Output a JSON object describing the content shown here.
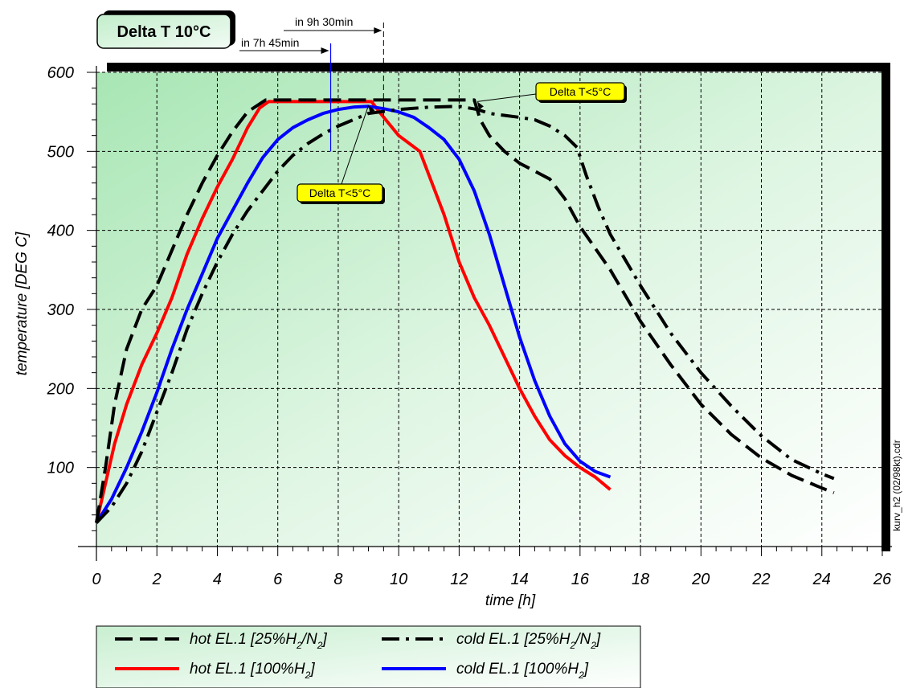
{
  "chart_data": {
    "type": "line",
    "title": "Delta T 10°C",
    "xlabel": "time [h]",
    "ylabel": "temperature [DEG C]",
    "xlim": [
      0,
      26
    ],
    "ylim": [
      0,
      600
    ],
    "x_ticks": [
      0,
      2,
      4,
      6,
      8,
      10,
      12,
      14,
      16,
      18,
      20,
      22,
      24,
      26
    ],
    "y_ticks": [
      100,
      200,
      300,
      400,
      500,
      600
    ],
    "grid": true,
    "legend_position": "bottom",
    "series": [
      {
        "name_parts": [
          "hot EL.1 [25%H",
          "2",
          "/N",
          "2",
          "]"
        ],
        "color": "#000000",
        "style": "dashed",
        "points": [
          [
            0,
            30
          ],
          [
            0.3,
            100
          ],
          [
            0.6,
            180
          ],
          [
            1,
            250
          ],
          [
            1.5,
            300
          ],
          [
            2,
            330
          ],
          [
            2.5,
            375
          ],
          [
            3,
            420
          ],
          [
            3.5,
            460
          ],
          [
            4,
            495
          ],
          [
            4.5,
            525
          ],
          [
            5,
            550
          ],
          [
            5.6,
            565
          ],
          [
            12.5,
            565
          ],
          [
            12.7,
            540
          ],
          [
            13,
            520
          ],
          [
            13.5,
            500
          ],
          [
            14,
            485
          ],
          [
            14.5,
            475
          ],
          [
            15,
            465
          ],
          [
            15.5,
            440
          ],
          [
            16,
            405
          ],
          [
            17,
            350
          ],
          [
            18,
            285
          ],
          [
            19,
            230
          ],
          [
            20,
            180
          ],
          [
            21,
            142
          ],
          [
            22,
            112
          ],
          [
            23,
            90
          ],
          [
            24,
            74
          ],
          [
            24.4,
            68
          ]
        ]
      },
      {
        "name_parts": [
          "cold EL.1 [25%H",
          "2",
          "/N",
          "2",
          "]"
        ],
        "color": "#000000",
        "style": "dashdot",
        "points": [
          [
            0,
            30
          ],
          [
            0.5,
            50
          ],
          [
            1,
            80
          ],
          [
            1.5,
            120
          ],
          [
            2,
            170
          ],
          [
            2.5,
            220
          ],
          [
            3,
            275
          ],
          [
            3.5,
            320
          ],
          [
            4,
            360
          ],
          [
            4.5,
            395
          ],
          [
            5,
            425
          ],
          [
            5.5,
            450
          ],
          [
            6,
            475
          ],
          [
            6.5,
            495
          ],
          [
            7,
            510
          ],
          [
            7.5,
            522
          ],
          [
            8,
            532
          ],
          [
            8.5,
            540
          ],
          [
            9,
            548
          ],
          [
            10,
            553
          ],
          [
            11,
            556
          ],
          [
            12,
            557
          ],
          [
            12.6,
            553
          ],
          [
            13,
            548
          ],
          [
            14,
            543
          ],
          [
            14.5,
            540
          ],
          [
            15,
            532
          ],
          [
            15.5,
            520
          ],
          [
            15.9,
            505
          ],
          [
            16.2,
            470
          ],
          [
            16.6,
            430
          ],
          [
            17,
            395
          ],
          [
            18,
            330
          ],
          [
            19,
            270
          ],
          [
            20,
            220
          ],
          [
            21,
            178
          ],
          [
            22,
            140
          ],
          [
            23,
            110
          ],
          [
            24,
            92
          ],
          [
            24.4,
            86
          ]
        ]
      },
      {
        "name_parts": [
          "hot EL.1 [100%H",
          "2",
          "]"
        ],
        "color": "#ff0000",
        "style": "solid",
        "points": [
          [
            0,
            30
          ],
          [
            0.3,
            80
          ],
          [
            0.6,
            130
          ],
          [
            1,
            180
          ],
          [
            1.5,
            230
          ],
          [
            2,
            270
          ],
          [
            2.5,
            315
          ],
          [
            3,
            370
          ],
          [
            3.5,
            415
          ],
          [
            4,
            455
          ],
          [
            4.5,
            490
          ],
          [
            5,
            530
          ],
          [
            5.4,
            555
          ],
          [
            5.7,
            563
          ],
          [
            9.1,
            563
          ],
          [
            9.4,
            548
          ],
          [
            10,
            520
          ],
          [
            10.7,
            500
          ],
          [
            11,
            470
          ],
          [
            11.5,
            420
          ],
          [
            12,
            360
          ],
          [
            12.5,
            315
          ],
          [
            13,
            280
          ],
          [
            13.5,
            240
          ],
          [
            14,
            200
          ],
          [
            14.5,
            165
          ],
          [
            15,
            135
          ],
          [
            15.5,
            115
          ],
          [
            16,
            100
          ],
          [
            16.5,
            88
          ],
          [
            17,
            72
          ]
        ]
      },
      {
        "name_parts": [
          "cold EL.1 [100%H",
          "2",
          "]"
        ],
        "color": "#0000ff",
        "style": "solid",
        "points": [
          [
            0,
            30
          ],
          [
            0.5,
            60
          ],
          [
            1,
            100
          ],
          [
            1.5,
            145
          ],
          [
            2,
            195
          ],
          [
            2.5,
            250
          ],
          [
            3,
            300
          ],
          [
            3.5,
            345
          ],
          [
            4,
            390
          ],
          [
            4.5,
            425
          ],
          [
            5,
            460
          ],
          [
            5.5,
            492
          ],
          [
            6,
            515
          ],
          [
            6.5,
            530
          ],
          [
            7,
            540
          ],
          [
            7.5,
            548
          ],
          [
            8,
            553
          ],
          [
            8.5,
            556
          ],
          [
            9,
            557
          ],
          [
            9.5,
            554
          ],
          [
            10,
            550
          ],
          [
            10.5,
            543
          ],
          [
            11,
            530
          ],
          [
            11.5,
            515
          ],
          [
            12,
            490
          ],
          [
            12.5,
            450
          ],
          [
            13,
            395
          ],
          [
            13.5,
            330
          ],
          [
            14,
            265
          ],
          [
            14.5,
            210
          ],
          [
            15,
            165
          ],
          [
            15.5,
            130
          ],
          [
            16,
            108
          ],
          [
            16.5,
            95
          ],
          [
            17,
            88
          ]
        ]
      }
    ],
    "annotations": [
      {
        "text": "in 9h 30min",
        "x": 9.5
      },
      {
        "text": "in 7h 45min",
        "x": 7.75
      },
      {
        "text": "Delta T<5°C",
        "at": [
          9,
          558
        ]
      },
      {
        "text": "Delta T<5°C",
        "at": [
          12.6,
          563
        ]
      }
    ],
    "side_note": "kurv_h2 (02/98kt).cdr"
  }
}
